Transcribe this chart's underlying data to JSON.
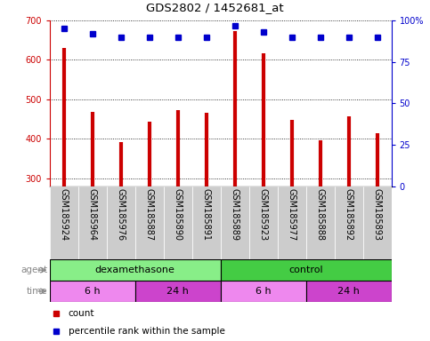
{
  "title": "GDS2802 / 1452681_at",
  "samples": [
    "GSM185924",
    "GSM185964",
    "GSM185976",
    "GSM185887",
    "GSM185890",
    "GSM185891",
    "GSM185889",
    "GSM185923",
    "GSM185977",
    "GSM185888",
    "GSM185892",
    "GSM185893"
  ],
  "counts": [
    630,
    468,
    392,
    443,
    473,
    467,
    672,
    617,
    447,
    397,
    457,
    415
  ],
  "percentiles": [
    95,
    92,
    90,
    90,
    90,
    90,
    97,
    93,
    90,
    90,
    90,
    90
  ],
  "ylim_left": [
    280,
    700
  ],
  "ylim_right": [
    0,
    100
  ],
  "yticks_left": [
    300,
    400,
    500,
    600,
    700
  ],
  "yticks_right": [
    0,
    25,
    50,
    75,
    100
  ],
  "bar_color": "#cc0000",
  "dot_color": "#0000cc",
  "agent_groups": [
    {
      "label": "dexamethasone",
      "start": 0,
      "end": 6,
      "color": "#88ee88"
    },
    {
      "label": "control",
      "start": 6,
      "end": 12,
      "color": "#44cc44"
    }
  ],
  "time_groups": [
    {
      "label": "6 h",
      "start": 0,
      "end": 3,
      "color": "#ee88ee"
    },
    {
      "label": "24 h",
      "start": 3,
      "end": 6,
      "color": "#cc44cc"
    },
    {
      "label": "6 h",
      "start": 6,
      "end": 9,
      "color": "#ee88ee"
    },
    {
      "label": "24 h",
      "start": 9,
      "end": 12,
      "color": "#cc44cc"
    }
  ],
  "agent_label": "agent",
  "time_label": "time",
  "legend_count_label": "count",
  "legend_pct_label": "percentile rank within the sample",
  "xlabel_bg": "#cccccc",
  "fig_width": 4.83,
  "fig_height": 3.84,
  "dpi": 100
}
